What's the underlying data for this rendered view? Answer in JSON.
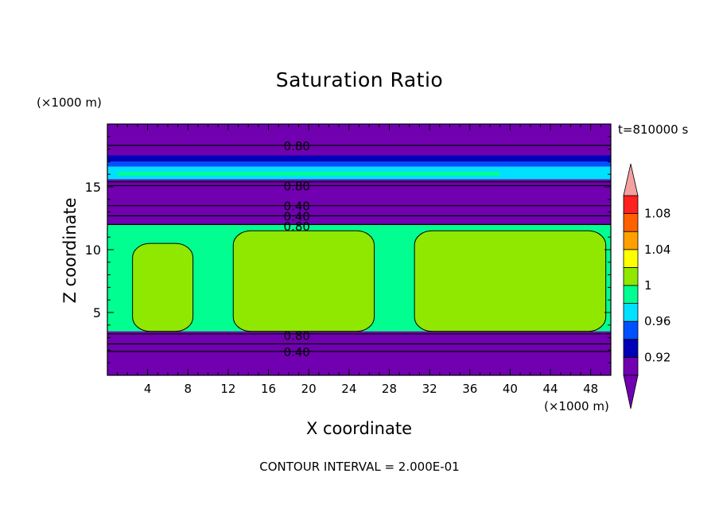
{
  "chart_data": {
    "type": "heatmap",
    "title": "Saturation Ratio",
    "xlabel": "X coordinate",
    "ylabel": "Z coordinate",
    "x_unit": "(×1000 m)",
    "y_unit": "(×1000 m)",
    "time_label": "t=810000 s",
    "contour_interval_label": "CONTOUR INTERVAL = 2.000E-01",
    "xlim": [
      0,
      50
    ],
    "ylim": [
      0,
      20
    ],
    "x_ticks": [
      4,
      8,
      12,
      16,
      20,
      24,
      28,
      32,
      36,
      40,
      44,
      48
    ],
    "y_ticks": [
      5,
      10,
      15
    ],
    "colorbar": {
      "levels": [
        0.9,
        0.92,
        0.94,
        0.96,
        0.98,
        1.0,
        1.02,
        1.04,
        1.06,
        1.08,
        1.1
      ],
      "tick_labels": [
        "0.92",
        "0.96",
        "1",
        "1.04",
        "1.08"
      ],
      "colors": [
        "#7000b0",
        "#0000b8",
        "#0050ff",
        "#00e0ff",
        "#00ff90",
        "#90e800",
        "#ffff00",
        "#ffa000",
        "#ff6000",
        "#ff2020"
      ],
      "under_color": "#7000b0",
      "over_color": "#f5a0a0"
    },
    "regions": [
      {
        "z_range": [
          17.5,
          20.0
        ],
        "value": "< 0.92",
        "color": "#7000b0"
      },
      {
        "z_range": [
          17.0,
          17.5
        ],
        "value": "0.92-0.94",
        "color": "#0000b8"
      },
      {
        "z_range": [
          16.6,
          17.0
        ],
        "value": "0.94-0.96",
        "color": "#0050ff"
      },
      {
        "z_range": [
          15.6,
          16.6
        ],
        "value": "0.96-1.0",
        "color": "#00e0ff"
      },
      {
        "z_range": [
          12.0,
          15.6
        ],
        "value": "< 0.92",
        "color": "#7000b0"
      },
      {
        "z_range": [
          3.5,
          12.0
        ],
        "value": "0.98-1.02",
        "color": "#00ff90"
      },
      {
        "z_range": [
          0.0,
          3.5
        ],
        "value": "< 0.92",
        "color": "#7000b0"
      }
    ],
    "supersaturated_cells": [
      {
        "x_range": [
          2.5,
          8.5
        ],
        "z_range": [
          3.5,
          10.5
        ]
      },
      {
        "x_range": [
          12.5,
          26.5
        ],
        "z_range": [
          3.5,
          11.5
        ]
      },
      {
        "x_range": [
          30.5,
          49.5
        ],
        "z_range": [
          3.5,
          11.5
        ]
      }
    ],
    "contour_labels": [
      {
        "text": "0.80",
        "z": 18.3
      },
      {
        "text": "0.80",
        "z": 15.1
      },
      {
        "text": "0.40",
        "z": 13.5
      },
      {
        "text": "0.40",
        "z": 12.7
      },
      {
        "text": "0.80",
        "z": 11.9
      },
      {
        "text": "0.80",
        "z": 3.2
      },
      {
        "text": "0.40",
        "z": 1.9
      }
    ],
    "contour_lines_z": [
      18.3,
      15.4,
      15.1,
      13.5,
      12.7,
      12.0,
      3.3,
      2.5,
      1.9
    ]
  }
}
